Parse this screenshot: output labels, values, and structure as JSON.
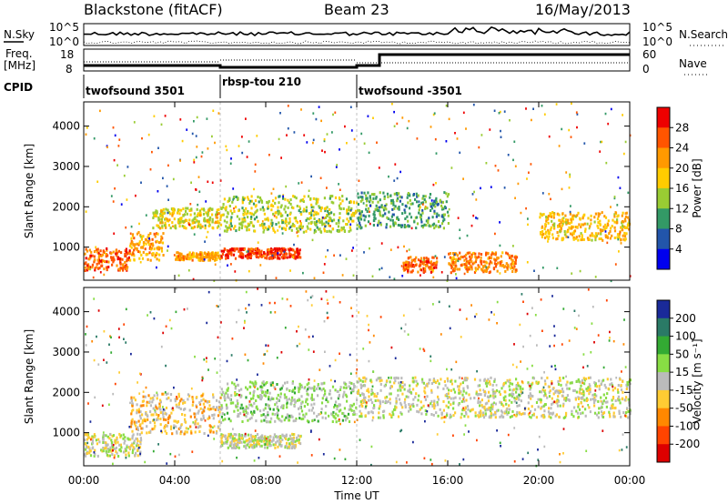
{
  "header": {
    "station": "Blackstone (fitACF)",
    "beam": "Beam 23",
    "date": "16/May/2013"
  },
  "top_panel": {
    "left_label": "N.Sky",
    "right_label": "N.Search",
    "left_ticks": [
      "10^5",
      "10^0"
    ],
    "right_ticks": [
      "10^5",
      "10^0"
    ]
  },
  "freq_panel": {
    "left_label_1": "Freq.",
    "left_label_2": "[MHz]",
    "right_label": "Nave",
    "left_ticks": [
      "18",
      "8"
    ],
    "right_ticks": [
      "60",
      "0"
    ]
  },
  "cpid": {
    "label": "CPID",
    "segments": [
      {
        "name": "twofsound 3501",
        "start_hour": 0
      },
      {
        "name": "rbsp-tou 210",
        "start_hour": 6
      },
      {
        "name": "twofsound -3501",
        "start_hour": 12
      }
    ]
  },
  "axes": {
    "ylabel": "Slant Range [km]",
    "xlabel": "Time UT",
    "x_ticks": [
      "00:00",
      "04:00",
      "08:00",
      "12:00",
      "16:00",
      "20:00",
      "00:00"
    ],
    "y_ticks": [
      "1000",
      "2000",
      "3000",
      "4000"
    ]
  },
  "colorbars": {
    "power": {
      "label": "Power [dB]",
      "ticks": [
        "28",
        "24",
        "20",
        "16",
        "12",
        "8",
        "4"
      ],
      "colors": [
        "#ee0000",
        "#ff5500",
        "#ff9900",
        "#ffcc00",
        "#99cc33",
        "#339966",
        "#2255aa",
        "#0000ee"
      ]
    },
    "velocity": {
      "label": "Velocity [m s⁻¹]",
      "ticks": [
        "200",
        "100",
        "50",
        "15",
        "-15",
        "-50",
        "-100",
        "-200"
      ],
      "colors": [
        "#1a2a99",
        "#2a7a66",
        "#33aa33",
        "#88dd44",
        "#bbbbbb",
        "#ffcc33",
        "#ff8800",
        "#ff4400",
        "#dd0000"
      ]
    }
  },
  "chart_data": [
    {
      "type": "heatmap",
      "title": "Power",
      "xlabel": "Time UT",
      "ylabel": "Slant Range [km]",
      "x_range_hours": [
        0,
        24
      ],
      "y_range_km": [
        180,
        4600
      ],
      "value_label": "Power [dB]",
      "value_range": [
        0,
        30
      ],
      "colors": [
        "#0000ee",
        "#2255aa",
        "#339966",
        "#99cc33",
        "#ffcc00",
        "#ff9900",
        "#ff5500",
        "#ee0000"
      ],
      "features": [
        {
          "t0": 0.0,
          "t1": 2.0,
          "r0": 450,
          "r1": 1000,
          "value": 24
        },
        {
          "t0": 2.0,
          "t1": 3.5,
          "r0": 700,
          "r1": 1400,
          "value": 20
        },
        {
          "t0": 3.0,
          "t1": 6.0,
          "r0": 1500,
          "r1": 2000,
          "value": 16
        },
        {
          "t0": 4.0,
          "t1": 6.0,
          "r0": 700,
          "r1": 900,
          "value": 20
        },
        {
          "t0": 6.0,
          "t1": 9.5,
          "r0": 750,
          "r1": 1000,
          "value": 26
        },
        {
          "t0": 6.0,
          "t1": 12.0,
          "r0": 1400,
          "r1": 2300,
          "value": 14
        },
        {
          "t0": 12.0,
          "t1": 16.0,
          "r0": 1500,
          "r1": 2400,
          "value": 10
        },
        {
          "t0": 14.0,
          "t1": 15.5,
          "r0": 400,
          "r1": 800,
          "value": 24
        },
        {
          "t0": 16.0,
          "t1": 19.0,
          "r0": 400,
          "r1": 900,
          "value": 22
        },
        {
          "t0": 20.0,
          "t1": 24.0,
          "r0": 1200,
          "r1": 1900,
          "value": 18
        }
      ]
    },
    {
      "type": "heatmap",
      "title": "Velocity",
      "xlabel": "Time UT",
      "ylabel": "Slant Range [km]",
      "x_range_hours": [
        0,
        24
      ],
      "y_range_km": [
        180,
        4600
      ],
      "value_label": "Velocity [m s⁻¹]",
      "value_range": [
        -200,
        200
      ],
      "colors": [
        "#dd0000",
        "#ff4400",
        "#ff8800",
        "#ffcc33",
        "#bbbbbb",
        "#88dd44",
        "#33aa33",
        "#2a7a66",
        "#1a2a99"
      ],
      "features": [
        {
          "t0": 0.0,
          "t1": 2.5,
          "r0": 450,
          "r1": 1000,
          "value": 0
        },
        {
          "t0": 2.0,
          "t1": 6.0,
          "r0": 1000,
          "r1": 2000,
          "value": -40
        },
        {
          "t0": 6.0,
          "t1": 9.5,
          "r0": 650,
          "r1": 1000,
          "value": 0
        },
        {
          "t0": 6.0,
          "t1": 12.0,
          "r0": 1300,
          "r1": 2300,
          "value": 30
        },
        {
          "t0": 12.0,
          "t1": 24.0,
          "r0": 1400,
          "r1": 2400,
          "value": 0
        }
      ]
    }
  ]
}
